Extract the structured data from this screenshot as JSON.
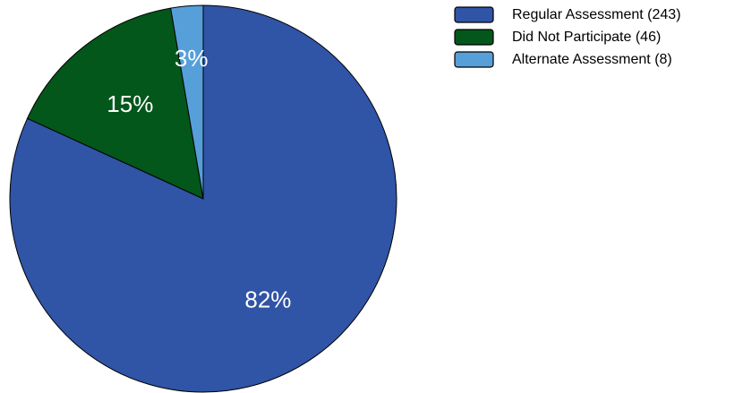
{
  "chart_data": {
    "type": "pie",
    "title": "",
    "legend_position": "top-right",
    "slices": [
      {
        "label": "Regular Assessment (243)",
        "value": 243,
        "percent_label": "82%",
        "color": "#3054A6"
      },
      {
        "label": "Did Not Participate (46)",
        "value": 46,
        "percent_label": "15%",
        "color": "#03571A"
      },
      {
        "label": "Alternate Assessment (8)",
        "value": 8,
        "percent_label": "3%",
        "color": "#569FD9"
      }
    ]
  }
}
